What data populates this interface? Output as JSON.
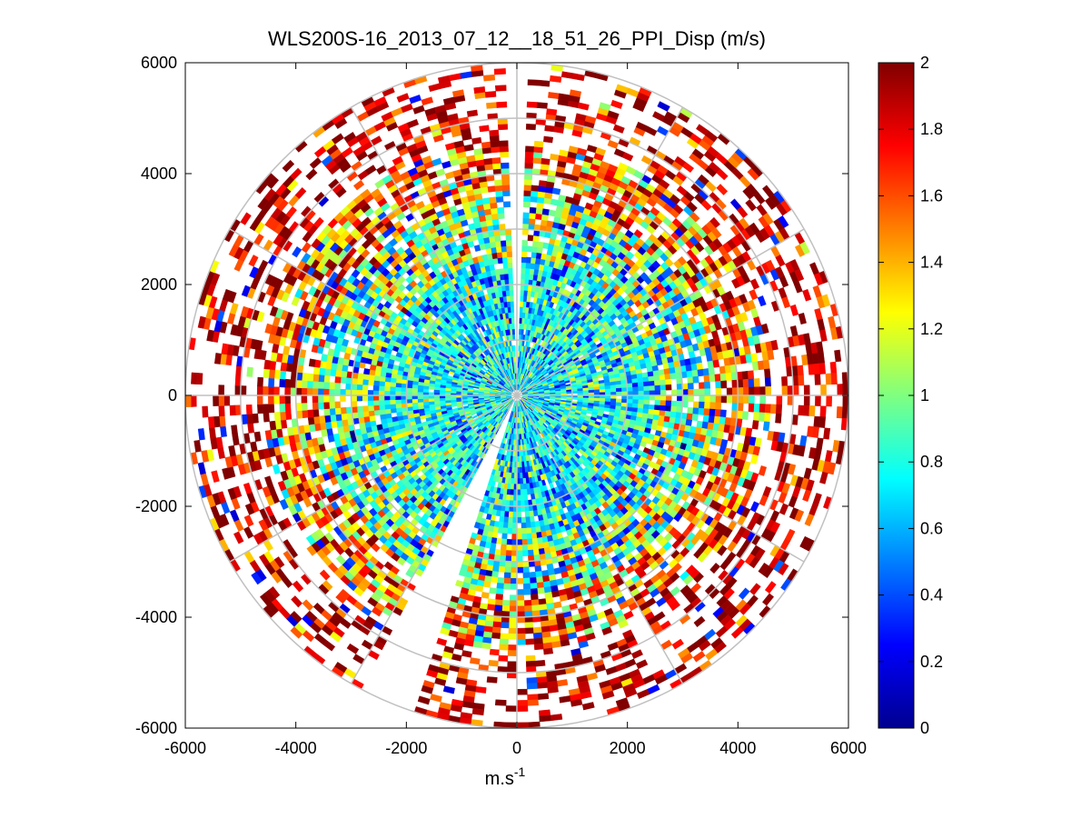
{
  "chart_data": {
    "type": "heatmap",
    "subtype": "polar-ppi",
    "title": "WLS200S-16_2013_07_12__18_51_26_PPI_Disp (m/s)",
    "xlabel": "m.s",
    "xlabel_superscript": "-1",
    "ylabel": "",
    "xlim": [
      -6000,
      6000
    ],
    "ylim": [
      -6000,
      6000
    ],
    "xticks": [
      "-6000",
      "-4000",
      "-2000",
      "0",
      "2000",
      "4000",
      "6000"
    ],
    "yticks": [
      "6000",
      "4000",
      "2000",
      "0",
      "-2000",
      "-4000",
      "-6000"
    ],
    "grid": "polar",
    "range_rings": [
      1000,
      2000,
      3000,
      4000,
      5000,
      6000
    ],
    "spokes_deg": [
      0,
      30,
      60,
      90,
      120,
      150,
      180,
      210,
      240,
      270,
      300,
      330
    ],
    "max_range": 6000,
    "colorbar": {
      "colormap": "jet",
      "clim": [
        0,
        2
      ],
      "ticks": [
        "0",
        "0.2",
        "0.4",
        "0.6",
        "0.8",
        "1",
        "1.2",
        "1.4",
        "1.6",
        "1.8",
        "2"
      ]
    },
    "gaps_az_deg": [
      [
        -1.5,
        1.5
      ],
      [
        198,
        208
      ]
    ],
    "zones": [
      {
        "r": [
          0,
          2500
        ],
        "mean": 0.78,
        "spread": 0.35,
        "coverage": 0.97
      },
      {
        "r": [
          2500,
          3600
        ],
        "mean": 1.0,
        "spread": 0.55,
        "coverage": 0.9
      },
      {
        "r": [
          3600,
          4600
        ],
        "mean": 1.5,
        "spread": 0.6,
        "coverage": 0.75
      },
      {
        "r": [
          4600,
          6000
        ],
        "mean": 1.85,
        "spread": 0.4,
        "coverage": 0.42
      }
    ]
  }
}
